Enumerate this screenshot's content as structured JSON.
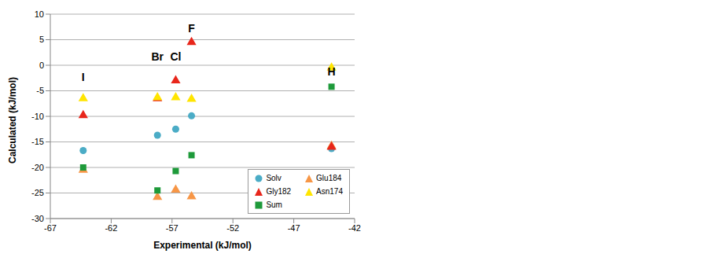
{
  "chart_data": {
    "type": "scatter",
    "xlabel": "Experimental (kJ/mol)",
    "ylabel": "Calculated (kJ/mol)",
    "x": [
      -64.3,
      -58.2,
      -56.7,
      -55.4,
      -43.9
    ],
    "xlim": [
      -67,
      -42
    ],
    "xticks": [
      -67,
      -62,
      -57,
      -52,
      -47,
      -42
    ],
    "ylim": [
      -30,
      10
    ],
    "yticks": [
      -30,
      -25,
      -20,
      -15,
      -10,
      -5,
      0,
      5,
      10
    ],
    "grid": true,
    "legend": "lower right",
    "series": [
      {
        "name": "Solv",
        "color": "#4BACC6",
        "marker": "circle",
        "values": [
          -16.7,
          -13.7,
          -12.5,
          -9.9,
          -16.3
        ]
      },
      {
        "name": "Glu184",
        "color": "#F79646",
        "marker": "triangle",
        "values": [
          -20.5,
          -25.8,
          -24.4,
          -25.7,
          -15.8
        ]
      },
      {
        "name": "Gly182",
        "color": "#E8261B",
        "marker": "triangle",
        "values": [
          -9.8,
          -6.5,
          -3.0,
          4.5,
          -16.0
        ]
      },
      {
        "name": "Asn174",
        "color": "#FFE500",
        "marker": "triangle",
        "values": [
          -6.5,
          -6.3,
          -6.3,
          -6.6,
          -0.5
        ]
      },
      {
        "name": "Sum",
        "color": "#1E9A3A",
        "marker": "square",
        "values": [
          -20.0,
          -24.5,
          -20.7,
          -17.6,
          -4.2
        ]
      }
    ],
    "annotations": [
      {
        "text": "I",
        "x": -64.3,
        "y": -2.5
      },
      {
        "text": "Br",
        "x": -58.2,
        "y": 1.5
      },
      {
        "text": "Cl",
        "x": -56.7,
        "y": 1.5
      },
      {
        "text": "F",
        "x": -55.4,
        "y": 7.0
      },
      {
        "text": "H",
        "x": -43.9,
        "y": -1.5
      }
    ]
  }
}
